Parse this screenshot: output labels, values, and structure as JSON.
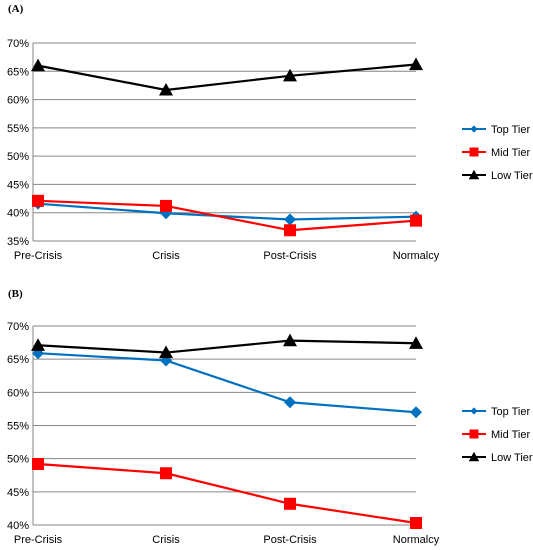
{
  "chart_data": [
    {
      "type": "line",
      "panel_label": "(A)",
      "categories": [
        "Pre-Crisis",
        "Crisis",
        "Post-Crisis",
        "Normalcy"
      ],
      "ylim": [
        0.35,
        0.7
      ],
      "yticks": [
        "35%",
        "40%",
        "45%",
        "50%",
        "55%",
        "60%",
        "65%",
        "70%"
      ],
      "grid": true,
      "legend_position": "right",
      "series": [
        {
          "name": "Top Tier",
          "values": [
            0.416,
            0.399,
            0.388,
            0.393
          ],
          "color": "#0070C0",
          "marker": "diamond"
        },
        {
          "name": "Mid Tier",
          "values": [
            0.421,
            0.412,
            0.369,
            0.386
          ],
          "color": "#FF0000",
          "marker": "square"
        },
        {
          "name": "Low Tier",
          "values": [
            0.66,
            0.617,
            0.642,
            0.662
          ],
          "color": "#000000",
          "marker": "triangle"
        }
      ]
    },
    {
      "type": "line",
      "panel_label": "(B)",
      "categories": [
        "Pre-Crisis",
        "Crisis",
        "Post-Crisis",
        "Normalcy"
      ],
      "ylim": [
        0.4,
        0.7
      ],
      "yticks": [
        "40%",
        "45%",
        "50%",
        "55%",
        "60%",
        "65%",
        "70%"
      ],
      "grid": true,
      "legend_position": "right",
      "series": [
        {
          "name": "Top Tier",
          "values": [
            0.659,
            0.648,
            0.585,
            0.57
          ],
          "color": "#0070C0",
          "marker": "diamond"
        },
        {
          "name": "Mid Tier",
          "values": [
            0.492,
            0.478,
            0.432,
            0.403
          ],
          "color": "#FF0000",
          "marker": "square"
        },
        {
          "name": "Low Tier",
          "values": [
            0.671,
            0.66,
            0.678,
            0.674
          ],
          "color": "#000000",
          "marker": "triangle"
        }
      ]
    }
  ]
}
